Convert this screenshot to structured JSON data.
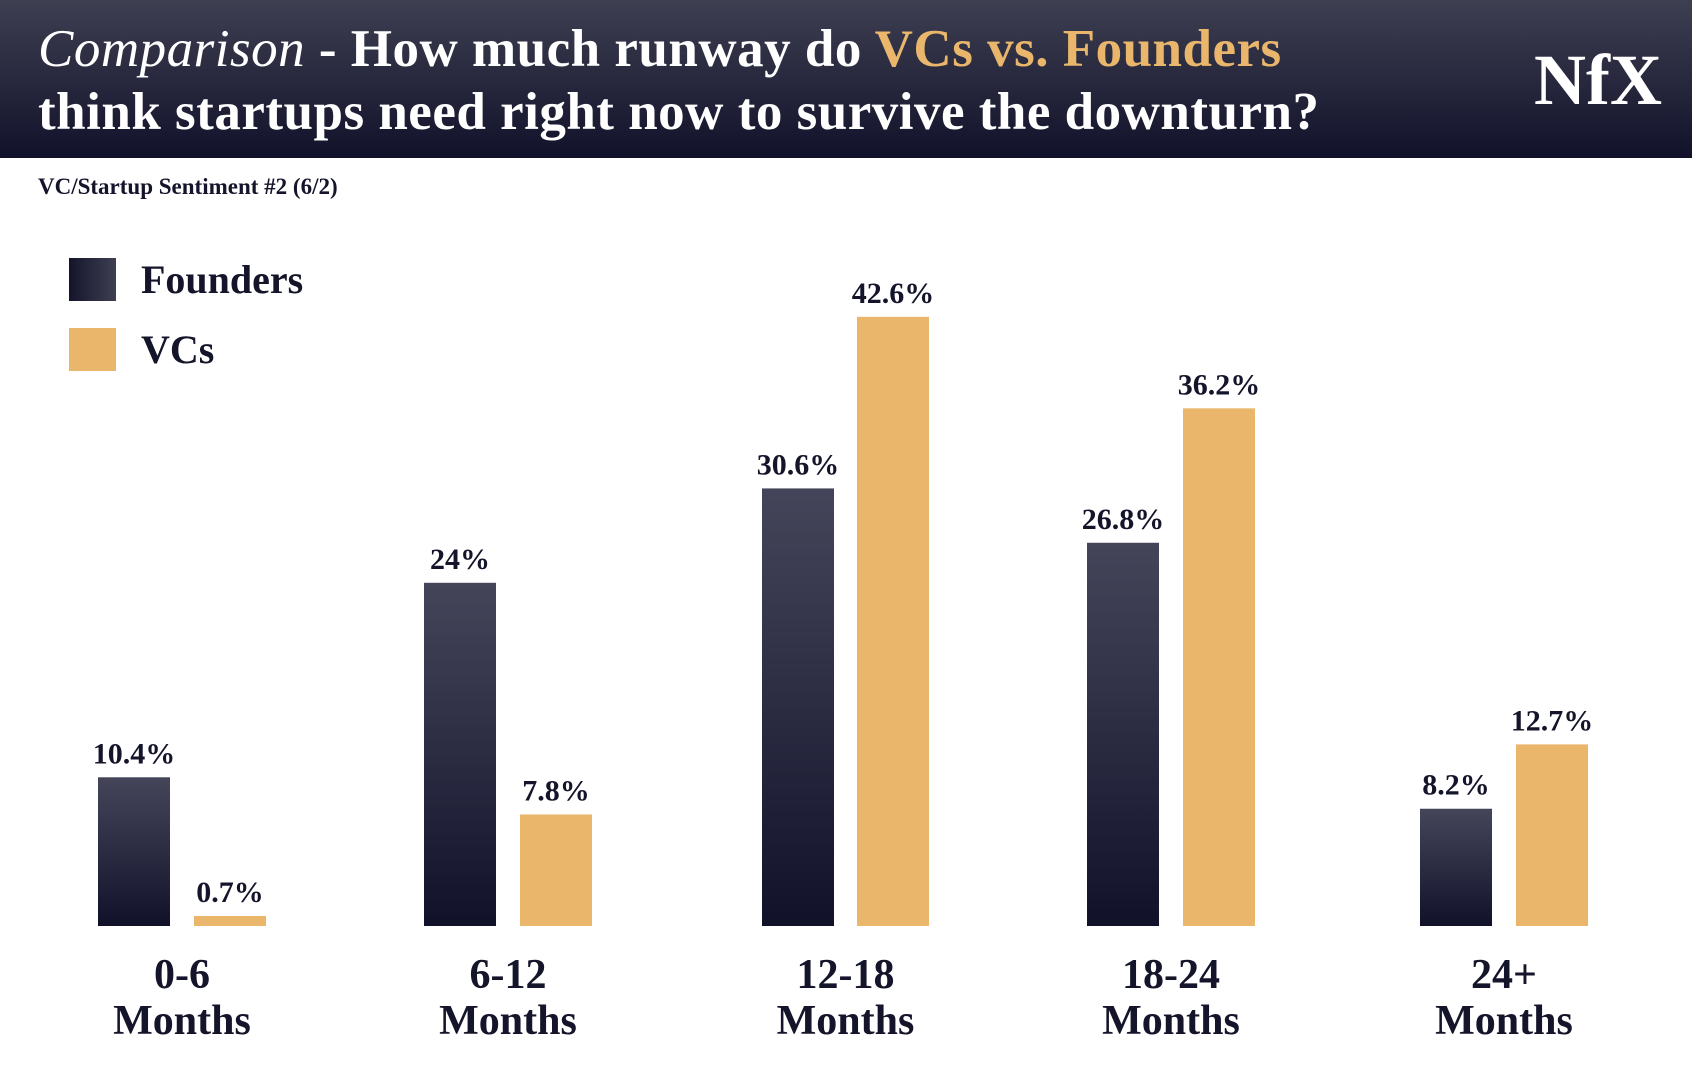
{
  "header": {
    "title_italic": "Comparison",
    "title_sep": " - How much runway do ",
    "title_highlight": "VCs vs. Founders",
    "title_line2": "think startups need right now to survive the downturn?",
    "logo": "NfX"
  },
  "subtitle": "VC/Startup Sentiment #2 (6/2)",
  "colors": {
    "founders": "#1c1c33",
    "vcs": "#e9b66c",
    "header": "#1a1a30"
  },
  "chart_data": {
    "type": "bar",
    "title": "Comparison - How much runway do VCs vs. Founders think startups need right now to survive the downturn?",
    "categories": [
      [
        "0-6",
        "Months"
      ],
      [
        "6-12",
        "Months"
      ],
      [
        "12-18",
        "Months"
      ],
      [
        "18-24",
        "Months"
      ],
      [
        "24+",
        "Months"
      ]
    ],
    "series": [
      {
        "name": "Founders",
        "values": [
          10.4,
          24,
          30.6,
          26.8,
          8.2
        ],
        "labels": [
          "10.4%",
          "24%",
          "30.6%",
          "26.8%",
          "8.2%"
        ]
      },
      {
        "name": "VCs",
        "values": [
          0.7,
          7.8,
          42.6,
          36.2,
          12.7
        ],
        "labels": [
          "0.7%",
          "7.8%",
          "42.6%",
          "36.2%",
          "12.7%"
        ]
      }
    ],
    "legend": "top-left",
    "grid": false,
    "yaxis_visible": false
  }
}
